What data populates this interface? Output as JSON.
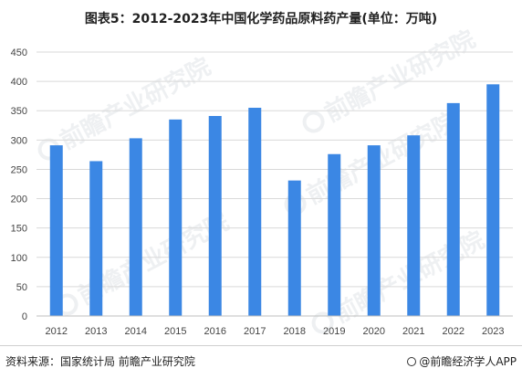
{
  "title": "图表5：2012-2023年中国化学药品原料药产量(单位：万吨)",
  "source": "资料来源：国家统计局 前瞻产业研究院",
  "brand": "@前瞻经济学人APP",
  "watermark": "前瞻产业研究院",
  "colors": {
    "bar": "#3b87e4",
    "grid": "#d9d9d9",
    "axis": "#bfbfbf"
  },
  "chart_data": {
    "type": "bar",
    "title": "图表5：2012-2023年中国化学药品原料药产量(单位：万吨)",
    "xlabel": "",
    "ylabel": "",
    "categories": [
      "2012",
      "2013",
      "2014",
      "2015",
      "2016",
      "2017",
      "2018",
      "2019",
      "2020",
      "2021",
      "2022",
      "2023"
    ],
    "values": [
      291,
      264,
      303,
      335,
      341,
      355,
      231,
      276,
      291,
      308,
      363,
      395
    ],
    "ylim": [
      0,
      450
    ],
    "yticks": [
      0,
      50,
      100,
      150,
      200,
      250,
      300,
      350,
      400,
      450
    ],
    "grid": true,
    "legend": "none"
  }
}
